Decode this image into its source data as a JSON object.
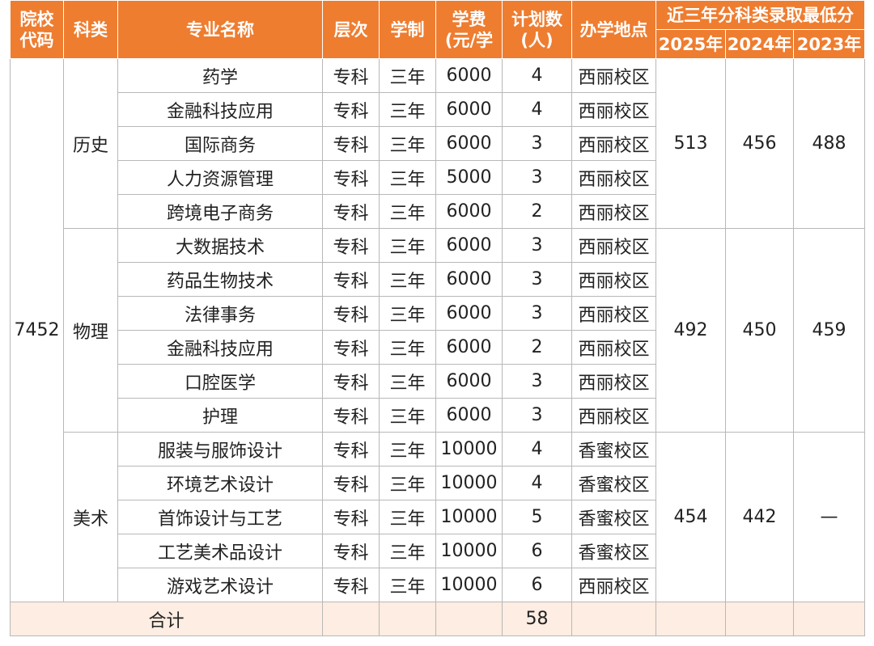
{
  "header": {
    "code": "院校代码",
    "subject": "科类",
    "major": "专业名称",
    "level": "层次",
    "duration": "学制",
    "fee": "学费(元/学",
    "plan": "计划数(人)",
    "campus": "办学地点",
    "scores_title": "近三年分科类录取最低分",
    "years": [
      "2025年",
      "2024年",
      "2023年"
    ]
  },
  "school_code": 7452,
  "groups": [
    {
      "subject": "历史",
      "scores": [
        "513",
        "456",
        "488"
      ],
      "rows": [
        {
          "major": "药学",
          "level": "专科",
          "duration": "三年",
          "fee": 6000,
          "plan": 4,
          "campus": "西丽校区"
        },
        {
          "major": "金融科技应用",
          "level": "专科",
          "duration": "三年",
          "fee": 6000,
          "plan": 4,
          "campus": "西丽校区"
        },
        {
          "major": "国际商务",
          "level": "专科",
          "duration": "三年",
          "fee": 6000,
          "plan": 3,
          "campus": "西丽校区"
        },
        {
          "major": "人力资源管理",
          "level": "专科",
          "duration": "三年",
          "fee": 5000,
          "plan": 3,
          "campus": "西丽校区"
        },
        {
          "major": "跨境电子商务",
          "level": "专科",
          "duration": "三年",
          "fee": 6000,
          "plan": 2,
          "campus": "西丽校区"
        }
      ]
    },
    {
      "subject": "物理",
      "scores": [
        "492",
        "450",
        "459"
      ],
      "rows": [
        {
          "major": "大数据技术",
          "level": "专科",
          "duration": "三年",
          "fee": 6000,
          "plan": 3,
          "campus": "西丽校区"
        },
        {
          "major": "药品生物技术",
          "level": "专科",
          "duration": "三年",
          "fee": 6000,
          "plan": 3,
          "campus": "西丽校区"
        },
        {
          "major": "法律事务",
          "level": "专科",
          "duration": "三年",
          "fee": 6000,
          "plan": 3,
          "campus": "西丽校区"
        },
        {
          "major": "金融科技应用",
          "level": "专科",
          "duration": "三年",
          "fee": 6000,
          "plan": 2,
          "campus": "西丽校区"
        },
        {
          "major": "口腔医学",
          "level": "专科",
          "duration": "三年",
          "fee": 6000,
          "plan": 3,
          "campus": "西丽校区"
        },
        {
          "major": "护理",
          "level": "专科",
          "duration": "三年",
          "fee": 6000,
          "plan": 3,
          "campus": "西丽校区"
        }
      ]
    },
    {
      "subject": "美术",
      "scores": [
        "454",
        "442",
        "—"
      ],
      "rows": [
        {
          "major": "服装与服饰设计",
          "level": "专科",
          "duration": "三年",
          "fee": 10000,
          "plan": 4,
          "campus": "香蜜校区"
        },
        {
          "major": "环境艺术设计",
          "level": "专科",
          "duration": "三年",
          "fee": 10000,
          "plan": 4,
          "campus": "香蜜校区"
        },
        {
          "major": "首饰设计与工艺",
          "level": "专科",
          "duration": "三年",
          "fee": 10000,
          "plan": 5,
          "campus": "香蜜校区"
        },
        {
          "major": "工艺美术品设计",
          "level": "专科",
          "duration": "三年",
          "fee": 10000,
          "plan": 6,
          "campus": "香蜜校区"
        },
        {
          "major": "游戏艺术设计",
          "level": "专科",
          "duration": "三年",
          "fee": 10000,
          "plan": 6,
          "campus": "西丽校区"
        }
      ]
    }
  ],
  "total": {
    "label": "合计",
    "plan": 58
  }
}
